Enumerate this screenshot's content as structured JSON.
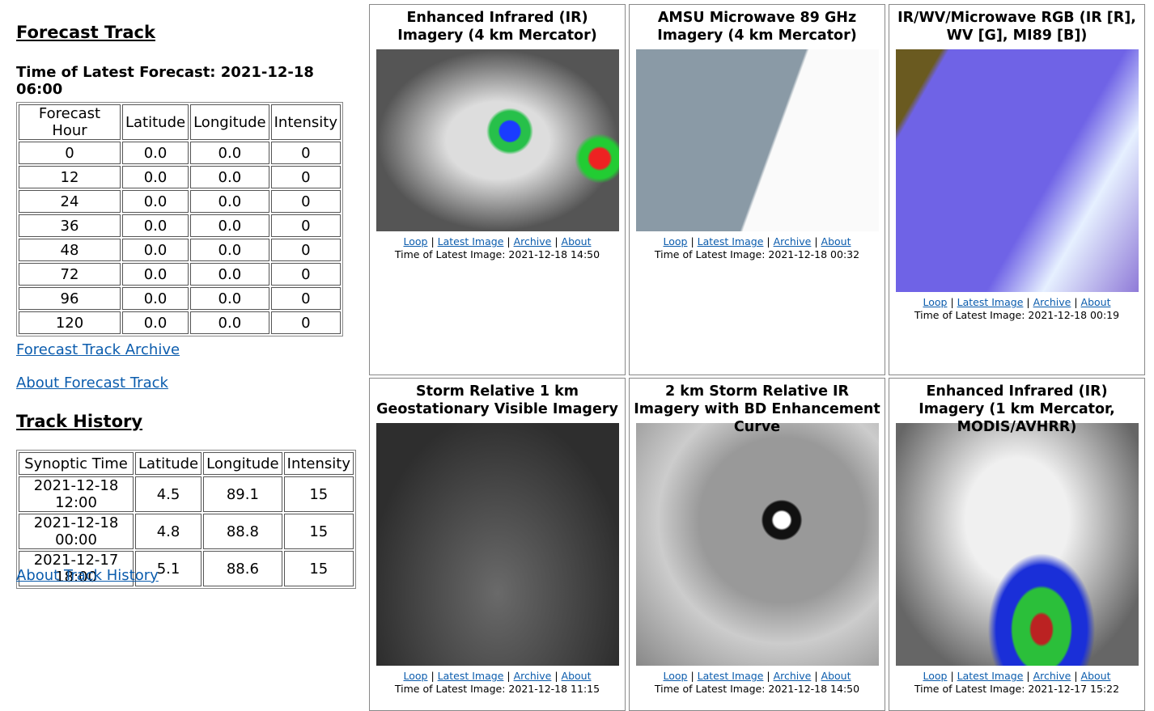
{
  "forecast_track": {
    "title": "Forecast Track",
    "latest": "Time of Latest Forecast: 2021-12-18 06:00",
    "table": {
      "header": [
        "Forecast Hour",
        "Latitude",
        "Longitude",
        "Intensity"
      ],
      "rows": [
        [
          "0",
          "0.0",
          "0.0",
          "0"
        ],
        [
          "12",
          "0.0",
          "0.0",
          "0"
        ],
        [
          "24",
          "0.0",
          "0.0",
          "0"
        ],
        [
          "36",
          "0.0",
          "0.0",
          "0"
        ],
        [
          "48",
          "0.0",
          "0.0",
          "0"
        ],
        [
          "72",
          "0.0",
          "0.0",
          "0"
        ],
        [
          "96",
          "0.0",
          "0.0",
          "0"
        ],
        [
          "120",
          "0.0",
          "0.0",
          "0"
        ]
      ]
    },
    "links": [
      "Forecast Track Archive",
      "About Forecast Track"
    ]
  },
  "track_history": {
    "title": "Track History",
    "table": {
      "header": [
        "Synoptic Time",
        "Latitude",
        "Longitude",
        "Intensity"
      ],
      "rows": [
        [
          "2021-12-18 12:00",
          "4.5",
          "89.1",
          "15"
        ],
        [
          "2021-12-18 00:00",
          "4.8",
          "88.8",
          "15"
        ],
        [
          "2021-12-17 18:00",
          "5.1",
          "88.6",
          "15"
        ]
      ]
    },
    "links": [
      "About Track History"
    ]
  },
  "panels": [
    {
      "title": "Enhanced Infrared (IR) Imagery (4 km Mercator)",
      "links": [
        "Loop",
        "Latest Image",
        "Archive",
        "About"
      ],
      "time": "Time of Latest Image: 2021-12-18 14:50"
    },
    {
      "title": "AMSU Microwave 89 GHz Imagery (4 km Mercator)",
      "links": [
        "Loop",
        "Latest Image",
        "Archive",
        "About"
      ],
      "time": "Time of Latest Image: 2021-12-18 00:32"
    },
    {
      "title": "IR/WV/Microwave RGB (IR [R], WV [G], MI89 [B])",
      "links": [
        "Loop",
        "Latest Image",
        "Archive",
        "About"
      ],
      "time": "Time of Latest Image: 2021-12-18 00:19"
    },
    {
      "title": "Storm Relative 1 km Geostationary Visible Imagery",
      "links": [
        "Loop",
        "Latest Image",
        "Archive",
        "About"
      ],
      "time": "Time of Latest Image: 2021-12-18 11:15"
    },
    {
      "title": "2 km Storm Relative IR Imagery with BD Enhancement Curve",
      "links": [
        "Loop",
        "Latest Image",
        "Archive",
        "About"
      ],
      "time": "Time of Latest Image: 2021-12-18 14:50"
    },
    {
      "title": "Enhanced Infrared (IR) Imagery (1 km Mercator, MODIS/AVHRR)",
      "links": [
        "Loop",
        "Latest Image",
        "Archive",
        "About"
      ],
      "time": "Time of Latest Image: 2021-12-17 15:22"
    }
  ]
}
